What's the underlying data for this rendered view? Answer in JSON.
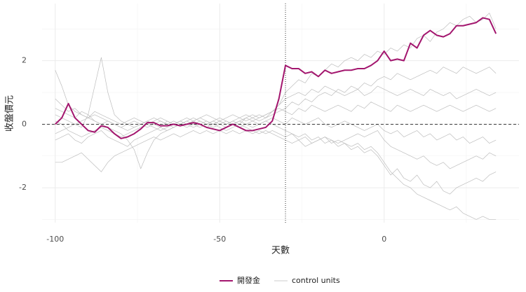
{
  "chart_data": {
    "type": "line",
    "x_label": "天數",
    "y_label": "收盤價元",
    "xlim": [
      -104,
      41
    ],
    "ylim": [
      -3.1,
      3.8
    ],
    "xticks": [
      -100,
      -50,
      0
    ],
    "yticks": [
      -2,
      0,
      2
    ],
    "grid": true,
    "hline": 0,
    "vline": -30,
    "legend": "bottom",
    "x": [
      -100,
      -98,
      -96,
      -94,
      -92,
      -90,
      -88,
      -86,
      -84,
      -82,
      -80,
      -78,
      -76,
      -74,
      -72,
      -70,
      -68,
      -66,
      -64,
      -62,
      -60,
      -58,
      -56,
      -54,
      -52,
      -50,
      -48,
      -46,
      -44,
      -42,
      -40,
      -38,
      -36,
      -34,
      -32,
      -30,
      -28,
      -26,
      -24,
      -22,
      -20,
      -18,
      -16,
      -14,
      -12,
      -10,
      -8,
      -6,
      -4,
      -2,
      0,
      2,
      4,
      6,
      8,
      10,
      12,
      14,
      16,
      18,
      20,
      22,
      24,
      26,
      28,
      30,
      32,
      34
    ],
    "control_units": {
      "name": "control units",
      "color": "#bdbdbd",
      "series": [
        [
          1.7,
          1.2,
          0.6,
          0.4,
          0.3,
          0.2,
          0.1,
          0.0,
          0.1,
          0.0,
          -0.1,
          0.0,
          0.1,
          0.0,
          -0.1,
          0.0,
          0.1,
          0.0,
          0.1,
          0.0,
          0.0,
          0.1,
          0.0,
          -0.1,
          0.0,
          0.1,
          0.0,
          0.1,
          0.0,
          0.2,
          0.1,
          0.2,
          0.3,
          0.4,
          0.6,
          1.0,
          1.2,
          1.4,
          1.3,
          1.6,
          1.5,
          1.7,
          1.9,
          1.8,
          2.0,
          2.1,
          2.0,
          2.2,
          2.1,
          2.3,
          2.2,
          2.4,
          2.3,
          2.5,
          2.4,
          2.7,
          2.8,
          2.6,
          2.9,
          3.0,
          3.2,
          3.1,
          3.3,
          3.4,
          3.2,
          3.3,
          3.5,
          3.0
        ],
        [
          -1.2,
          -1.2,
          -1.1,
          -1.0,
          -0.9,
          -1.1,
          -1.3,
          -1.5,
          -1.2,
          -1.0,
          -0.9,
          -0.8,
          -0.7,
          -0.6,
          -0.5,
          -0.4,
          -0.5,
          -0.4,
          -0.3,
          -0.4,
          -0.3,
          -0.2,
          -0.3,
          -0.2,
          -0.3,
          -0.2,
          -0.3,
          -0.2,
          -0.3,
          -0.2,
          -0.3,
          -0.2,
          -0.3,
          -0.2,
          -0.3,
          -0.4,
          -0.3,
          -0.5,
          -0.4,
          -0.6,
          -0.5,
          -0.4,
          -0.6,
          -0.5,
          -0.6,
          -0.7,
          -0.6,
          -0.8,
          -0.7,
          -0.9,
          -1.2,
          -1.5,
          -1.7,
          -1.9,
          -2.0,
          -2.2,
          -2.3,
          -2.4,
          -2.5,
          -2.6,
          -2.7,
          -2.6,
          -2.8,
          -2.9,
          -3.0,
          -2.9,
          -3.0,
          -3.0
        ],
        [
          0.3,
          0.2,
          0.1,
          0.0,
          -0.1,
          0.3,
          1.2,
          2.1,
          1.0,
          0.3,
          0.1,
          0.0,
          -0.1,
          0.0,
          0.1,
          0.0,
          -0.1,
          0.1,
          0.0,
          0.1,
          0.0,
          0.1,
          0.2,
          0.1,
          0.0,
          0.1,
          0.0,
          0.1,
          0.2,
          0.1,
          0.2,
          0.1,
          0.2,
          0.3,
          0.4,
          0.5,
          0.7,
          0.6,
          0.8,
          0.7,
          0.9,
          1.0,
          0.9,
          1.1,
          1.0,
          1.2,
          1.1,
          1.3,
          1.2,
          1.4,
          1.5,
          1.4,
          1.6,
          1.5,
          1.4,
          1.5,
          1.6,
          1.7,
          1.6,
          1.8,
          1.7,
          1.6,
          1.8,
          1.7,
          1.6,
          1.7,
          1.8,
          1.6
        ],
        [
          0.5,
          0.4,
          0.3,
          0.2,
          0.4,
          0.3,
          0.1,
          0.0,
          -0.1,
          -0.2,
          -0.3,
          -0.5,
          -0.8,
          -1.4,
          -0.9,
          -0.5,
          -0.3,
          -0.2,
          -0.1,
          0.0,
          0.1,
          0.0,
          -0.1,
          0.0,
          0.1,
          0.0,
          -0.1,
          0.0,
          0.1,
          0.0,
          -0.1,
          0.0,
          0.1,
          0.0,
          -0.1,
          -0.2,
          -0.3,
          -0.4,
          -0.3,
          -0.5,
          -0.4,
          -0.6,
          -0.5,
          -0.7,
          -0.6,
          -0.8,
          -0.7,
          -0.9,
          -0.8,
          -1.0,
          -1.3,
          -1.6,
          -1.4,
          -1.7,
          -1.8,
          -1.6,
          -1.9,
          -2.0,
          -1.8,
          -2.1,
          -2.2,
          -2.0,
          -1.9,
          -1.8,
          -1.7,
          -1.8,
          -1.6,
          -1.5
        ],
        [
          -0.3,
          -0.2,
          -0.1,
          0.0,
          0.1,
          0.2,
          0.3,
          0.2,
          0.1,
          0.0,
          -0.1,
          -0.2,
          -0.1,
          0.0,
          0.1,
          0.2,
          0.1,
          0.0,
          -0.1,
          0.0,
          0.1,
          0.2,
          0.1,
          0.0,
          0.1,
          0.2,
          0.1,
          0.0,
          0.1,
          0.2,
          0.3,
          0.2,
          0.3,
          0.4,
          0.5,
          0.4,
          0.3,
          0.5,
          0.4,
          0.6,
          0.5,
          0.4,
          0.5,
          0.6,
          0.5,
          0.4,
          0.6,
          0.5,
          0.7,
          0.6,
          0.5,
          0.4,
          0.6,
          0.5,
          0.4,
          0.5,
          0.6,
          0.5,
          0.4,
          0.5,
          0.6,
          0.5,
          0.4,
          0.5,
          0.6,
          0.5,
          0.4,
          0.5
        ],
        [
          0.1,
          0.0,
          -0.2,
          -0.3,
          -0.4,
          -0.3,
          -0.2,
          -0.1,
          -0.2,
          -0.3,
          -0.4,
          -0.3,
          -0.2,
          -0.1,
          0.0,
          -0.1,
          -0.2,
          -0.1,
          0.0,
          0.1,
          0.0,
          -0.1,
          0.0,
          0.1,
          0.0,
          -0.1,
          -0.2,
          -0.1,
          0.0,
          -0.1,
          -0.2,
          -0.3,
          -0.2,
          -0.3,
          -0.4,
          -0.5,
          -0.6,
          -0.5,
          -0.7,
          -0.6,
          -0.5,
          -0.4,
          -0.5,
          -0.6,
          -0.5,
          -0.4,
          -0.3,
          -0.4,
          -0.3,
          -0.2,
          -0.5,
          -0.7,
          -0.8,
          -0.9,
          -1.0,
          -1.1,
          -1.0,
          -1.2,
          -1.3,
          -1.2,
          -1.4,
          -1.3,
          -1.2,
          -1.1,
          -1.0,
          -1.1,
          -0.9,
          -1.0
        ],
        [
          0.8,
          0.6,
          0.4,
          0.5,
          0.3,
          0.2,
          0.4,
          0.3,
          0.2,
          0.1,
          0.0,
          0.1,
          0.2,
          0.1,
          0.0,
          0.1,
          0.2,
          0.1,
          0.0,
          0.1,
          0.2,
          0.1,
          0.2,
          0.3,
          0.2,
          0.1,
          0.2,
          0.3,
          0.2,
          0.3,
          0.2,
          0.3,
          0.2,
          0.4,
          0.6,
          0.8,
          0.9,
          1.0,
          0.9,
          1.1,
          1.0,
          1.2,
          1.1,
          1.0,
          0.9,
          1.0,
          1.1,
          0.9,
          1.0,
          1.2,
          1.1,
          1.0,
          0.9,
          1.0,
          1.1,
          1.0,
          0.9,
          1.1,
          1.0,
          0.9,
          1.0,
          0.8,
          0.9,
          1.0,
          1.1,
          1.0,
          0.9,
          1.0
        ],
        [
          -0.5,
          -0.4,
          -0.3,
          -0.5,
          -0.6,
          -0.4,
          -0.3,
          -0.2,
          -0.4,
          -0.5,
          -0.6,
          -0.7,
          -0.5,
          -0.4,
          -0.3,
          -0.2,
          -0.1,
          -0.2,
          -0.1,
          0.0,
          -0.1,
          0.0,
          0.1,
          0.0,
          -0.1,
          0.0,
          0.1,
          0.0,
          -0.1,
          0.0,
          0.1,
          0.0,
          0.1,
          0.2,
          0.1,
          0.0,
          0.2,
          0.1,
          0.0,
          0.1,
          0.2,
          0.0,
          -0.1,
          0.0,
          0.1,
          0.0,
          -0.1,
          -0.2,
          -0.1,
          0.0,
          -0.2,
          -0.3,
          -0.2,
          -0.4,
          -0.3,
          -0.2,
          -0.4,
          -0.3,
          -0.5,
          -0.4,
          -0.3,
          -0.5,
          -0.4,
          -0.6,
          -0.5,
          -0.4,
          -0.6,
          -0.5
        ]
      ]
    },
    "series": [
      {
        "name": "開發金",
        "color": "#a3166e",
        "values": [
          0.0,
          0.2,
          0.65,
          0.2,
          0.0,
          -0.2,
          -0.25,
          -0.05,
          -0.1,
          -0.3,
          -0.45,
          -0.4,
          -0.3,
          -0.15,
          0.05,
          0.05,
          -0.05,
          -0.05,
          0.0,
          -0.05,
          0.0,
          0.05,
          0.0,
          -0.1,
          -0.15,
          -0.2,
          -0.1,
          0.0,
          -0.1,
          -0.2,
          -0.2,
          -0.15,
          -0.1,
          0.1,
          0.8,
          1.85,
          1.75,
          1.75,
          1.6,
          1.65,
          1.5,
          1.7,
          1.6,
          1.65,
          1.7,
          1.7,
          1.75,
          1.75,
          1.85,
          2.0,
          2.3,
          2.0,
          2.05,
          2.0,
          2.55,
          2.4,
          2.8,
          2.95,
          2.8,
          2.75,
          2.85,
          3.1,
          3.1,
          3.15,
          3.2,
          3.35,
          3.3,
          2.85
        ]
      }
    ]
  }
}
